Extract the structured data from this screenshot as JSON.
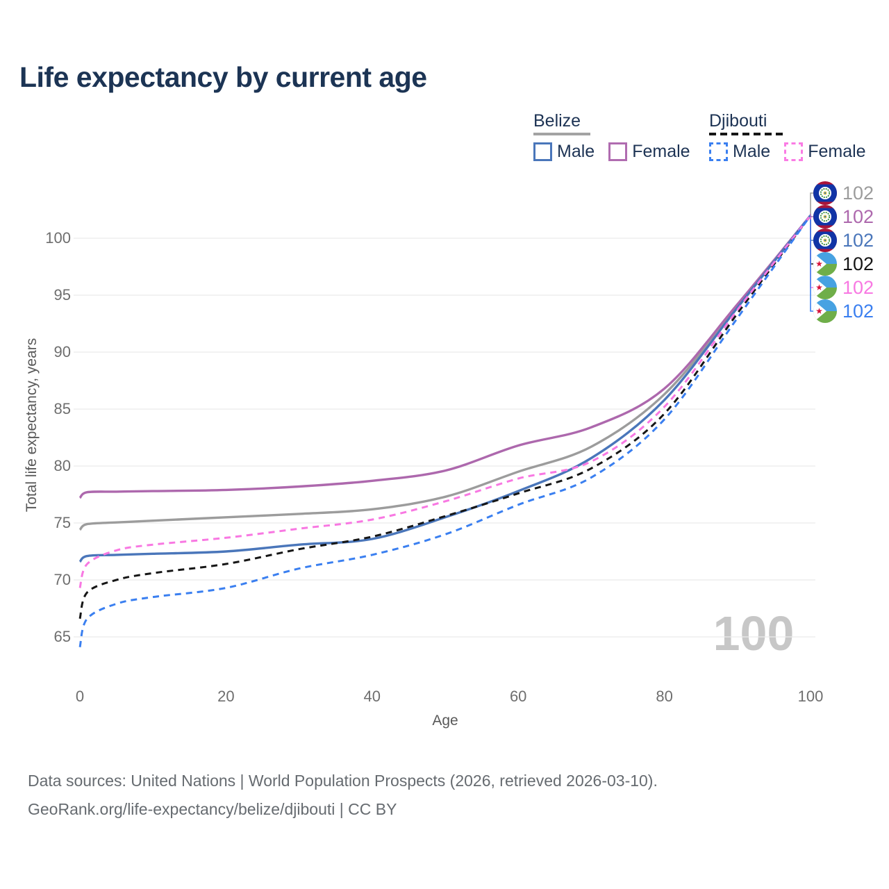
{
  "title": "Life expectancy by current age",
  "legend": {
    "groups": [
      {
        "name": "Belize",
        "line_style": "solid",
        "underline_color": "#a3a3a3",
        "entries": [
          {
            "label": "Male",
            "color": "#4a76ba"
          },
          {
            "label": "Female",
            "color": "#b06cb0"
          }
        ]
      },
      {
        "name": "Djibouti",
        "line_style": "dashed",
        "underline_color": "#161616",
        "entries": [
          {
            "label": "Male",
            "color": "#3a7ff0"
          },
          {
            "label": "Female",
            "color": "#fa7ce4"
          }
        ]
      }
    ]
  },
  "chart_data": {
    "type": "line",
    "title": "Life expectancy by current age",
    "xlabel": "Age",
    "ylabel": "Total life expectancy, years",
    "xlim": [
      0,
      100
    ],
    "ylim": [
      63,
      103
    ],
    "x_ticks": [
      0,
      20,
      40,
      60,
      80,
      100
    ],
    "y_ticks": [
      65,
      70,
      75,
      80,
      85,
      90,
      95,
      100
    ],
    "grid": "horizontal",
    "legend_position": "top-right",
    "watermark": "100",
    "x": [
      0,
      1,
      5,
      10,
      20,
      30,
      40,
      50,
      60,
      70,
      80,
      90,
      100
    ],
    "series": [
      {
        "name": "Belize (both sexes)",
        "country": "Belize",
        "sex": "all",
        "color": "#9c9c9c",
        "dash": "solid",
        "values": [
          74.4,
          74.9,
          75.05,
          75.2,
          75.5,
          75.8,
          76.2,
          77.3,
          79.5,
          81.7,
          86.3,
          94.0,
          102
        ],
        "end_label": "102"
      },
      {
        "name": "Belize Female",
        "country": "Belize",
        "sex": "female",
        "color": "#ad68ad",
        "dash": "solid",
        "values": [
          77.2,
          77.7,
          77.75,
          77.8,
          77.9,
          78.2,
          78.7,
          79.6,
          81.8,
          83.4,
          86.8,
          94.2,
          102
        ],
        "end_label": "102"
      },
      {
        "name": "Belize Male",
        "country": "Belize",
        "sex": "male",
        "color": "#4a76ba",
        "dash": "solid",
        "values": [
          71.6,
          72.1,
          72.2,
          72.3,
          72.5,
          73.1,
          73.6,
          75.5,
          77.8,
          80.7,
          85.8,
          93.9,
          102
        ],
        "end_label": "102"
      },
      {
        "name": "Djibouti (both sexes)",
        "country": "Djibouti",
        "sex": "all",
        "color": "#161616",
        "dash": "dashed",
        "values": [
          66.6,
          68.9,
          70.0,
          70.6,
          71.4,
          72.7,
          73.8,
          75.6,
          77.6,
          79.8,
          84.6,
          93.4,
          102
        ],
        "end_label": "102"
      },
      {
        "name": "Djibouti Female",
        "country": "Djibouti",
        "sex": "female",
        "color": "#f878e2",
        "dash": "dashed",
        "values": [
          69.3,
          71.4,
          72.6,
          73.1,
          73.7,
          74.5,
          75.3,
          76.9,
          78.9,
          80.4,
          85.2,
          93.7,
          102
        ],
        "end_label": "102"
      },
      {
        "name": "Djibouti Male",
        "country": "Djibouti",
        "sex": "male",
        "color": "#3a7ff0",
        "dash": "dashed",
        "values": [
          64.1,
          66.6,
          67.9,
          68.5,
          69.3,
          71.0,
          72.2,
          74.0,
          76.6,
          79.0,
          84.1,
          93.0,
          102
        ],
        "end_label": "102"
      }
    ]
  },
  "end_labels": [
    {
      "flag": "belize-flag-icon",
      "value": "102",
      "color": "#9c9c9c"
    },
    {
      "flag": "belize-flag-icon",
      "value": "102",
      "color": "#ad68ad"
    },
    {
      "flag": "belize-flag-icon",
      "value": "102",
      "color": "#4a76ba"
    },
    {
      "flag": "djibouti-flag-icon",
      "value": "102",
      "color": "#161616"
    },
    {
      "flag": "djibouti-flag-icon",
      "value": "102",
      "color": "#f878e2"
    },
    {
      "flag": "djibouti-flag-icon",
      "value": "102",
      "color": "#3a7ff0"
    }
  ],
  "footer": {
    "line1": "Data sources: United Nations | World Population Prospects (2026, retrieved 2026-03-10).",
    "line2": "GeoRank.org/life-expectancy/belize/djibouti | CC BY"
  }
}
